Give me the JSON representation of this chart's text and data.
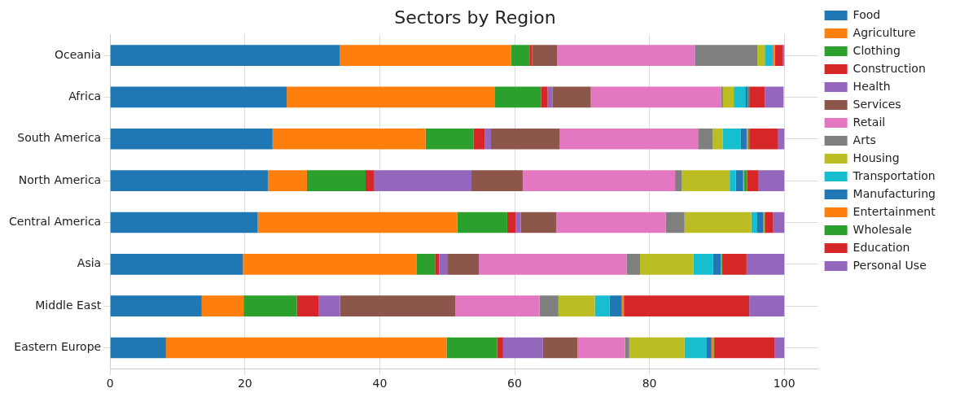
{
  "chart_data": {
    "type": "bar",
    "title": "Sectors by Region",
    "orientation": "horizontal",
    "stacked": true,
    "categories": [
      "Oceania",
      "Africa",
      "South America",
      "North America",
      "Central America",
      "Asia",
      "Middle East",
      "Eastern Europe"
    ],
    "series": [
      {
        "name": "Food",
        "color": "#1f77b4",
        "values": [
          34.1,
          26.2,
          24.1,
          23.4,
          21.9,
          19.7,
          13.6,
          8.3
        ]
      },
      {
        "name": "Agriculture",
        "color": "#ff7f0e",
        "values": [
          25.4,
          30.9,
          22.7,
          5.8,
          29.6,
          25.8,
          6.2,
          41.6
        ]
      },
      {
        "name": "Clothing",
        "color": "#2ca02c",
        "values": [
          2.7,
          6.8,
          7.1,
          8.7,
          7.4,
          2.7,
          7.9,
          7.5
        ]
      },
      {
        "name": "Construction",
        "color": "#d62728",
        "values": [
          0.4,
          1.0,
          1.7,
          1.3,
          1.3,
          0.6,
          3.2,
          0.9
        ]
      },
      {
        "name": "Health",
        "color": "#9467bd",
        "values": [
          0,
          0.7,
          0.9,
          14.4,
          0.7,
          1.3,
          3.2,
          5.9
        ]
      },
      {
        "name": "Services",
        "color": "#8c564b",
        "values": [
          3.7,
          5.7,
          10.2,
          7.6,
          5.3,
          4.6,
          17.1,
          5.1
        ]
      },
      {
        "name": "Retail",
        "color": "#e377c2",
        "values": [
          20.5,
          19.3,
          20.5,
          22.6,
          16.2,
          21.9,
          12.5,
          7.1
        ]
      },
      {
        "name": "Arts",
        "color": "#7f7f7f",
        "values": [
          9.2,
          0.3,
          2.2,
          1.0,
          2.8,
          2.0,
          2.8,
          0.6
        ]
      },
      {
        "name": "Housing",
        "color": "#bcbd22",
        "values": [
          1.1,
          1.6,
          1.5,
          7.1,
          9.9,
          7.9,
          5.4,
          8.2
        ]
      },
      {
        "name": "Transportation",
        "color": "#17becf",
        "values": [
          1.1,
          1.7,
          2.6,
          0.9,
          0.8,
          2.9,
          2.2,
          3.3
        ]
      },
      {
        "name": "Manufacturing",
        "color": "#1f77b4",
        "values": [
          0.1,
          0.4,
          0.9,
          1.1,
          1.0,
          1.2,
          1.8,
          0.7
        ]
      },
      {
        "name": "Entertainment",
        "color": "#ff7f0e",
        "values": [
          0.3,
          null,
          0.2,
          0.1,
          0.1,
          0.1,
          0.3,
          0.3
        ]
      },
      {
        "name": "Wholesale",
        "color": "#2ca02c",
        "values": [
          0,
          0.2,
          0.2,
          0.5,
          0.1,
          0.1,
          0,
          0.1
        ]
      },
      {
        "name": "Education",
        "color": "#d62728",
        "values": [
          1.2,
          2.3,
          4.3,
          1.7,
          1.2,
          3.6,
          18.6,
          9.0
        ]
      },
      {
        "name": "Personal Use",
        "color": "#9467bd",
        "values": [
          0.2,
          2.8,
          0.9,
          3.8,
          1.7,
          5.6,
          5.2,
          1.4
        ]
      }
    ],
    "xlim": [
      0,
      105
    ],
    "xticks": [
      0,
      20,
      40,
      60,
      80,
      100
    ],
    "grid": true,
    "legend": "right"
  }
}
